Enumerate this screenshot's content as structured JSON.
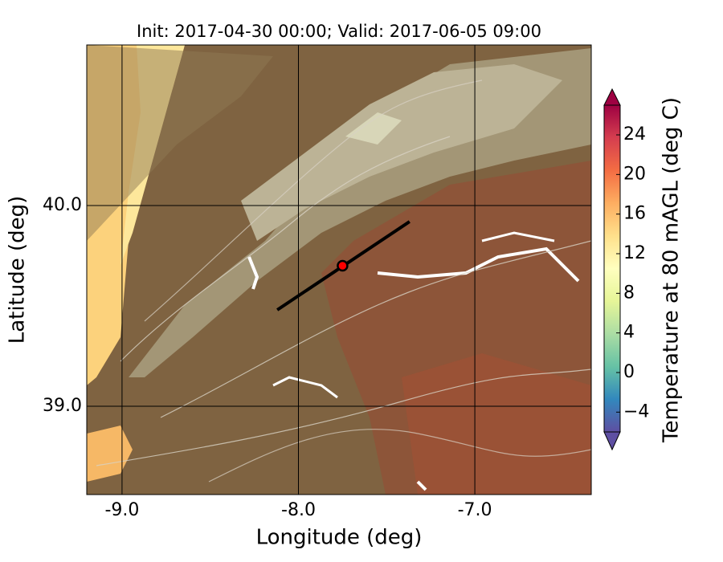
{
  "chart_data": {
    "type": "map",
    "title": "Init: 2017-04-30 00:00; Valid: 2017-06-05 09:00",
    "xlabel": "Longitude (deg)",
    "ylabel": "Latitude (deg)",
    "xlim": [
      -9.2,
      -6.34
    ],
    "ylim": [
      38.56,
      40.8
    ],
    "xticks": [
      {
        "value": -9,
        "label": "-9.0"
      },
      {
        "value": -8,
        "label": "-8.0"
      },
      {
        "value": -7,
        "label": "-7.0"
      }
    ],
    "yticks": [
      {
        "value": 39,
        "label": "39.0"
      },
      {
        "value": 40,
        "label": "40.0"
      }
    ],
    "grid": true,
    "transect": {
      "x": [
        -8.12,
        -7.37
      ],
      "y": [
        39.48,
        39.92
      ],
      "color": "#000000"
    },
    "marker": {
      "x": -7.75,
      "y": 39.7,
      "color": "#ff0000"
    },
    "colorbar": {
      "label": "Temperature at 80 mAGL (deg C)",
      "clim": [
        -6,
        27
      ],
      "ticks": [
        {
          "value": -4,
          "label": "−4"
        },
        0,
        4,
        8,
        12,
        16,
        20,
        24
      ],
      "colors": [
        "#5e4fa2",
        "#3288bd",
        "#66c2a5",
        "#abdda4",
        "#e6f598",
        "#ffffbf",
        "#fee08b",
        "#fdae61",
        "#f46d43",
        "#d53e4f",
        "#9e0142"
      ]
    }
  }
}
